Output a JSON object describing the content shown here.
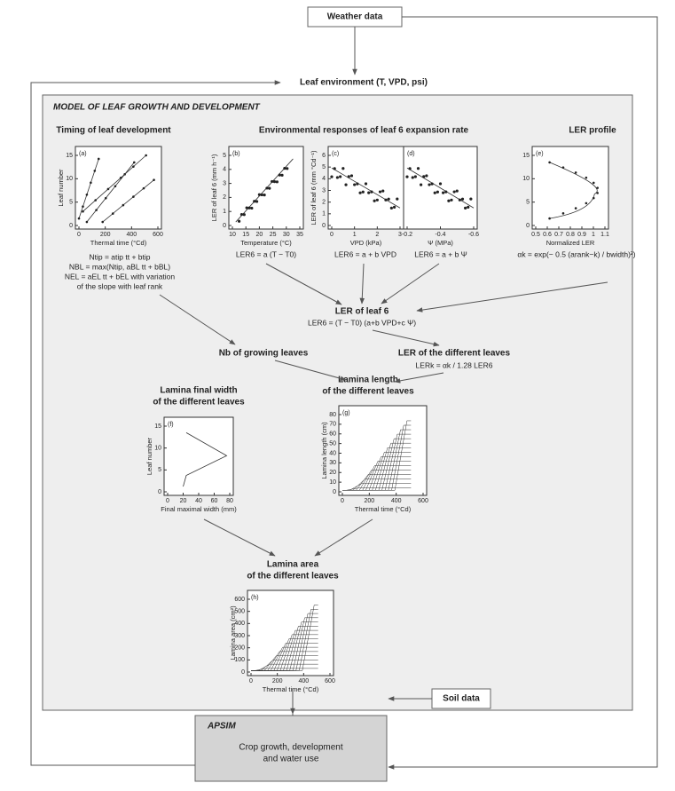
{
  "inputs": {
    "weather": "Weather data",
    "environment": "Leaf environment (T, VPD, psi)",
    "soil": "Soil data"
  },
  "model": {
    "title": "MODEL OF LEAF GROWTH AND DEVELOPMENT",
    "sections": [
      "Timing of leaf development",
      "Environmental responses of leaf 6 expansion rate",
      "LER profile"
    ]
  },
  "panels": [
    {
      "label": "(a)",
      "x_label": "Thermal time (°Cd)",
      "y_label": "Leaf number",
      "x_ticks": [
        "0",
        "200",
        "400",
        "600"
      ],
      "y_ticks": [
        "0",
        "5",
        "10",
        "15"
      ]
    },
    {
      "label": "(b)",
      "x_label": "Temperature (°C)",
      "y_label": "LER of leaf 6 (mm h⁻¹)",
      "x_ticks": [
        "10",
        "15",
        "20",
        "25",
        "30",
        "35"
      ],
      "y_ticks": [
        "0",
        "1",
        "2",
        "3",
        "4",
        "5"
      ]
    },
    {
      "label": "(c)",
      "x_label": "VPD (kPa)",
      "y_label": "LER of leaf 6 (mm °Cd⁻¹)",
      "x_ticks": [
        "0",
        "1",
        "2",
        "3"
      ],
      "y_ticks": [
        "0",
        "1",
        "2",
        "3",
        "4",
        "5",
        "6"
      ]
    },
    {
      "label": "(d)",
      "x_label": "Ψ (MPa)",
      "x_ticks": [
        "-0.2",
        "-0.4",
        "-0.6"
      ]
    },
    {
      "label": "(e)",
      "x_label": "Normalized LER",
      "x_ticks": [
        "0.5",
        "0.6",
        "0.7",
        "0.8",
        "0.9",
        "1",
        "1.1"
      ],
      "y_ticks": [
        "0",
        "5",
        "10",
        "15"
      ]
    },
    {
      "label": "(f)",
      "x_label": "Final maximal width (mm)",
      "y_label": "Leaf number",
      "x_ticks": [
        "0",
        "20",
        "40",
        "60",
        "80"
      ],
      "y_ticks": [
        "0",
        "5",
        "10",
        "15"
      ]
    },
    {
      "label": "(g)",
      "x_label": "Thermal time (°Cd)",
      "y_label": "Lamina length (cm)",
      "x_ticks": [
        "0",
        "200",
        "400",
        "600"
      ],
      "y_ticks": [
        "0",
        "10",
        "20",
        "30",
        "40",
        "50",
        "60",
        "70",
        "80"
      ]
    },
    {
      "label": "(h)",
      "x_label": "Thermal time (°Cd)",
      "y_label": "Lamina area (cm²)",
      "x_ticks": [
        "0",
        "200",
        "400",
        "600"
      ],
      "y_ticks": [
        "0",
        "100",
        "200",
        "300",
        "400",
        "500",
        "600"
      ]
    }
  ],
  "equations": {
    "timing": [
      "Ntip = atip tt + btip",
      "NBL = max(Ntip, aBL tt + bBL)",
      "NEL = aEL tt + bEL with variation",
      "of the slope with leaf rank"
    ],
    "temperature": "LER6 = a (T − T0)",
    "vpd": "LER6 = a + b VPD",
    "psi": "LER6 = a + b Ψ",
    "profile": "αk = exp(− 0.5 (arank−k) / bwidth)²)"
  },
  "nodes": {
    "ler6": {
      "title": "LER of leaf 6",
      "equation": "LER6 = (T − T0) (a+b VPD+c Ψ)"
    },
    "growing": {
      "title": "Nb of growing leaves"
    },
    "ler_leaves": {
      "title": "LER of the different leaves",
      "equation": "LERk = αk / 1.28 LER6"
    },
    "width": {
      "title": [
        "Lamina final width",
        "of the different leaves"
      ]
    },
    "length": {
      "title": [
        "Lamina length",
        "of the different leaves"
      ]
    },
    "area": {
      "title": [
        "Lamina area",
        "of the different leaves"
      ]
    }
  },
  "apsim": {
    "title": "APSIM",
    "text": [
      "Crop growth, development",
      "and water use"
    ]
  }
}
